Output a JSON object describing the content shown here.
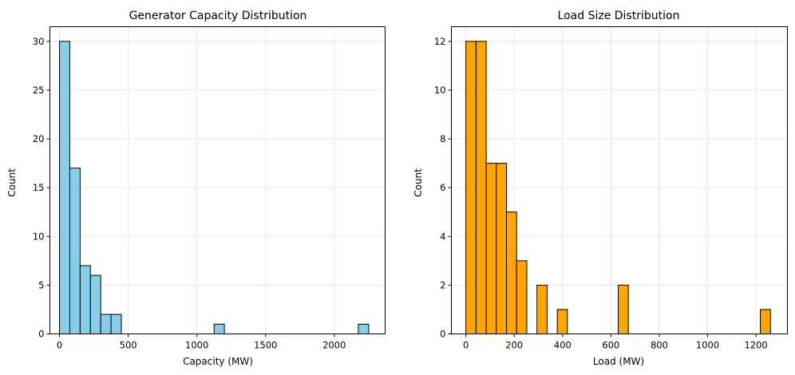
{
  "chart_data": [
    {
      "type": "bar",
      "title": "Generator Capacity Distribution",
      "xlabel": "Capacity (MW)",
      "ylabel": "Count",
      "xlim": [
        -70,
        2370
      ],
      "ylim": [
        0,
        31.5
      ],
      "xticks": [
        0,
        500,
        1000,
        1500,
        2000
      ],
      "yticks": [
        0,
        5,
        10,
        15,
        20,
        25,
        30
      ],
      "grid": true,
      "bar_color": "#87CEEB",
      "bin_edges": [
        0,
        75,
        150,
        225,
        300,
        375,
        450,
        525,
        600,
        675,
        750,
        825,
        900,
        975,
        1050,
        1125,
        1200,
        1275,
        1350,
        1425,
        1500,
        1575,
        1650,
        1725,
        1800,
        1875,
        1950,
        2025,
        2100,
        2175,
        2250
      ],
      "counts": [
        30,
        17,
        7,
        6,
        2,
        2,
        0,
        0,
        0,
        0,
        0,
        0,
        0,
        0,
        0,
        1,
        0,
        0,
        0,
        0,
        0,
        0,
        0,
        0,
        0,
        0,
        0,
        0,
        0,
        1
      ]
    },
    {
      "type": "bar",
      "title": "Load Size Distribution",
      "xlabel": "Load (MW)",
      "ylabel": "Count",
      "xlim": [
        -60,
        1330
      ],
      "ylim": [
        0,
        12.6
      ],
      "xticks": [
        0,
        200,
        400,
        600,
        800,
        1000,
        1200
      ],
      "yticks": [
        0,
        2,
        4,
        6,
        8,
        10,
        12
      ],
      "grid": true,
      "bar_color": "#FFA500",
      "bin_edges": [
        0,
        42,
        84,
        126,
        168,
        210,
        252,
        294,
        336,
        378,
        420,
        462,
        504,
        546,
        588,
        630,
        672,
        714,
        756,
        798,
        840,
        882,
        924,
        966,
        1008,
        1050,
        1092,
        1134,
        1176,
        1218,
        1260
      ],
      "counts": [
        12,
        12,
        7,
        7,
        5,
        3,
        0,
        2,
        0,
        1,
        0,
        0,
        0,
        0,
        0,
        2,
        0,
        0,
        0,
        0,
        0,
        0,
        0,
        0,
        0,
        0,
        0,
        0,
        0,
        1
      ]
    }
  ]
}
